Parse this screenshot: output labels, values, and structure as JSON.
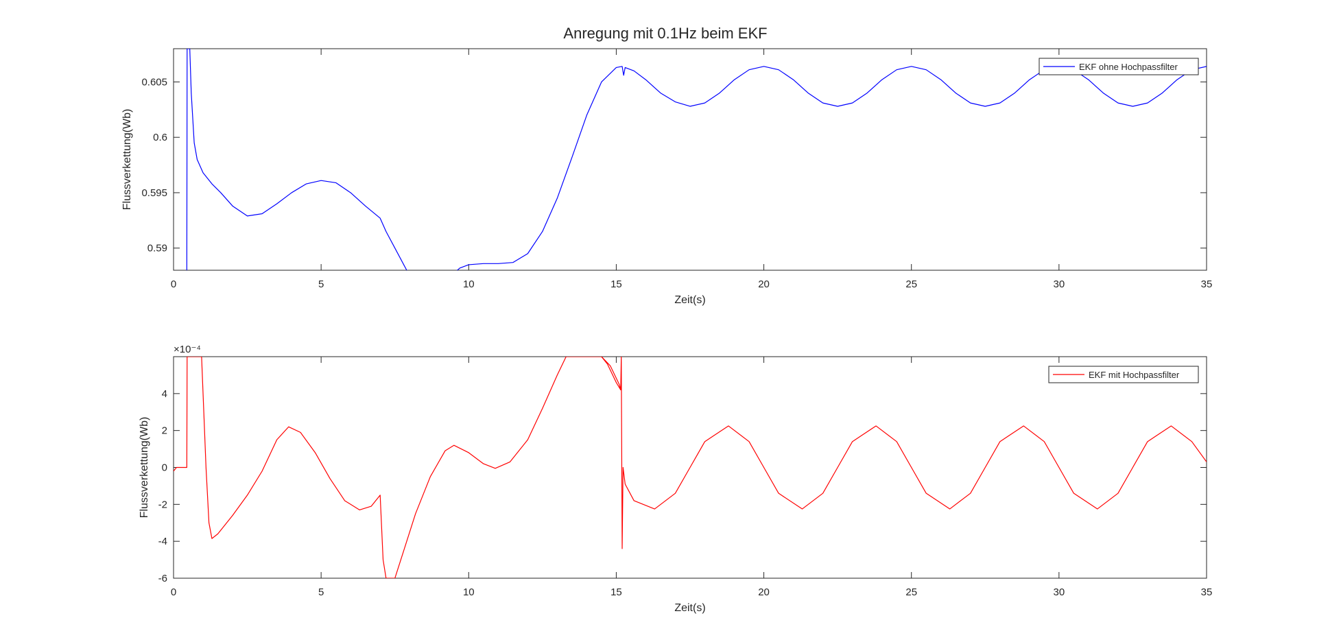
{
  "figure": {
    "title": "Anregung mit 0.1Hz beim EKF"
  },
  "chart_data": [
    {
      "type": "line",
      "xlabel": "Zeit(s)",
      "ylabel": "Flussverkettung(Wb)",
      "xlim": [
        0,
        35
      ],
      "ylim": [
        0.588,
        0.608
      ],
      "xticks": [
        0,
        5,
        10,
        15,
        20,
        25,
        30,
        35
      ],
      "xtick_labels": [
        "0",
        "5",
        "10",
        "15",
        "20",
        "25",
        "30",
        "35"
      ],
      "yticks": [
        0.59,
        0.595,
        0.6,
        0.605
      ],
      "ytick_labels": [
        "0.59",
        "0.595",
        "0.6",
        "0.605"
      ],
      "exponent_label": "",
      "legend_position": "top-right",
      "grid": false,
      "series": [
        {
          "name": "EKF ohne Hochpassfilter",
          "color": "#0000ff",
          "points": [
            [
              0.45,
              0.588
            ],
            [
              0.46,
              0.608
            ],
            [
              0.55,
              0.608
            ],
            [
              0.6,
              0.604
            ],
            [
              0.7,
              0.5995
            ],
            [
              0.8,
              0.598
            ],
            [
              1.0,
              0.5968
            ],
            [
              1.3,
              0.5958
            ],
            [
              1.6,
              0.595
            ],
            [
              2.0,
              0.5938
            ],
            [
              2.5,
              0.5929
            ],
            [
              3.0,
              0.5931
            ],
            [
              3.5,
              0.594
            ],
            [
              4.0,
              0.595
            ],
            [
              4.5,
              0.5958
            ],
            [
              5.0,
              0.5961
            ],
            [
              5.5,
              0.5959
            ],
            [
              6.0,
              0.595
            ],
            [
              6.5,
              0.5938
            ],
            [
              7.0,
              0.5927
            ],
            [
              7.2,
              0.5915
            ],
            [
              7.5,
              0.59
            ],
            [
              7.8,
              0.5885
            ],
            [
              8.0,
              0.5875
            ],
            [
              9.4,
              0.5875
            ],
            [
              9.7,
              0.5882
            ],
            [
              10.0,
              0.5885
            ],
            [
              10.5,
              0.5886
            ],
            [
              11.0,
              0.5886
            ],
            [
              11.5,
              0.5887
            ],
            [
              12.0,
              0.5895
            ],
            [
              12.5,
              0.5915
            ],
            [
              13.0,
              0.5945
            ],
            [
              13.5,
              0.5982
            ],
            [
              14.0,
              0.602
            ],
            [
              14.5,
              0.605
            ],
            [
              15.0,
              0.6063
            ],
            [
              15.2,
              0.6064
            ],
            [
              15.25,
              0.6056
            ],
            [
              15.3,
              0.6063
            ],
            [
              15.6,
              0.606
            ],
            [
              16.0,
              0.6052
            ],
            [
              16.5,
              0.604
            ],
            [
              17.0,
              0.6032
            ],
            [
              17.5,
              0.6028
            ],
            [
              18.0,
              0.6031
            ],
            [
              18.5,
              0.604
            ],
            [
              19.0,
              0.6052
            ],
            [
              19.5,
              0.6061
            ],
            [
              20.0,
              0.6064
            ],
            [
              20.5,
              0.6061
            ],
            [
              21.0,
              0.6052
            ],
            [
              21.5,
              0.604
            ],
            [
              22.0,
              0.6031
            ],
            [
              22.5,
              0.6028
            ],
            [
              23.0,
              0.6031
            ],
            [
              23.5,
              0.604
            ],
            [
              24.0,
              0.6052
            ],
            [
              24.5,
              0.6061
            ],
            [
              25.0,
              0.6064
            ],
            [
              25.5,
              0.6061
            ],
            [
              26.0,
              0.6052
            ],
            [
              26.5,
              0.604
            ],
            [
              27.0,
              0.6031
            ],
            [
              27.5,
              0.6028
            ],
            [
              28.0,
              0.6031
            ],
            [
              28.5,
              0.604
            ],
            [
              29.0,
              0.6052
            ],
            [
              29.5,
              0.6061
            ],
            [
              30.0,
              0.6064
            ],
            [
              30.5,
              0.6061
            ],
            [
              31.0,
              0.6052
            ],
            [
              31.5,
              0.604
            ],
            [
              32.0,
              0.6031
            ],
            [
              32.5,
              0.6028
            ],
            [
              33.0,
              0.6031
            ],
            [
              33.5,
              0.604
            ],
            [
              34.0,
              0.6052
            ],
            [
              34.5,
              0.6061
            ],
            [
              35.0,
              0.6064
            ]
          ]
        }
      ]
    },
    {
      "type": "line",
      "xlabel": "Zeit(s)",
      "ylabel": "Flussverkettung(Wb)",
      "xlim": [
        0,
        35
      ],
      "ylim": [
        -6,
        6
      ],
      "xticks": [
        0,
        5,
        10,
        15,
        20,
        25,
        30,
        35
      ],
      "xtick_labels": [
        "0",
        "5",
        "10",
        "15",
        "20",
        "25",
        "30",
        "35"
      ],
      "yticks": [
        -6,
        -4,
        -2,
        0,
        2,
        4
      ],
      "ytick_labels": [
        "-6",
        "-4",
        "-2",
        "0",
        "2",
        "4"
      ],
      "exponent_label": "×10⁻⁴",
      "legend_position": "top-right",
      "grid": false,
      "series": [
        {
          "name": "EKF mit Hochpassfilter",
          "color": "#ff0000",
          "points": [
            [
              0.0,
              -0.2
            ],
            [
              0.1,
              0.0
            ],
            [
              0.45,
              0.0
            ],
            [
              0.46,
              6.0
            ],
            [
              0.95,
              6.0
            ],
            [
              1.0,
              4.0
            ],
            [
              1.1,
              0.0
            ],
            [
              1.2,
              -3.0
            ],
            [
              1.3,
              -3.85
            ],
            [
              1.5,
              -3.6
            ],
            [
              2.0,
              -2.6
            ],
            [
              2.5,
              -1.5
            ],
            [
              3.0,
              -0.2
            ],
            [
              3.5,
              1.5
            ],
            [
              3.9,
              2.2
            ],
            [
              4.3,
              1.9
            ],
            [
              4.8,
              0.8
            ],
            [
              5.3,
              -0.6
            ],
            [
              5.8,
              -1.8
            ],
            [
              6.3,
              -2.3
            ],
            [
              6.7,
              -2.1
            ],
            [
              7.0,
              -1.5
            ],
            [
              7.1,
              -5.0
            ],
            [
              7.2,
              -6.0
            ],
            [
              7.5,
              -6.0
            ],
            [
              7.8,
              -4.5
            ],
            [
              8.2,
              -2.5
            ],
            [
              8.7,
              -0.5
            ],
            [
              9.2,
              0.9
            ],
            [
              9.5,
              1.2
            ],
            [
              10.0,
              0.8
            ],
            [
              10.5,
              0.2
            ],
            [
              10.9,
              -0.05
            ],
            [
              11.4,
              0.3
            ],
            [
              12.0,
              1.5
            ],
            [
              12.5,
              3.2
            ],
            [
              13.0,
              5.0
            ],
            [
              13.3,
              6.0
            ],
            [
              14.5,
              6.0
            ],
            [
              14.8,
              5.5
            ],
            [
              15.1,
              4.5
            ],
            [
              15.15,
              4.2
            ],
            [
              15.17,
              6.0
            ],
            [
              15.2,
              -4.4
            ],
            [
              15.23,
              0.0
            ],
            [
              15.3,
              -0.9
            ],
            [
              15.6,
              -1.8
            ],
            [
              16.3,
              -2.25
            ],
            [
              17.0,
              -1.4
            ],
            [
              17.5,
              0.0
            ],
            [
              18.0,
              1.4
            ],
            [
              18.8,
              2.25
            ],
            [
              19.5,
              1.4
            ],
            [
              20.0,
              0.0
            ],
            [
              20.5,
              -1.4
            ],
            [
              21.3,
              -2.25
            ],
            [
              22.0,
              -1.4
            ],
            [
              22.5,
              0.0
            ],
            [
              23.0,
              1.4
            ],
            [
              23.8,
              2.25
            ],
            [
              24.5,
              1.4
            ],
            [
              25.0,
              0.0
            ],
            [
              25.5,
              -1.4
            ],
            [
              26.3,
              -2.25
            ],
            [
              27.0,
              -1.4
            ],
            [
              27.5,
              0.0
            ],
            [
              28.0,
              1.4
            ],
            [
              28.8,
              2.25
            ],
            [
              29.5,
              1.4
            ],
            [
              30.0,
              0.0
            ],
            [
              30.5,
              -1.4
            ],
            [
              31.3,
              -2.25
            ],
            [
              32.0,
              -1.4
            ],
            [
              32.5,
              0.0
            ],
            [
              33.0,
              1.4
            ],
            [
              33.8,
              2.25
            ],
            [
              34.5,
              1.4
            ],
            [
              35.0,
              0.3
            ]
          ]
        },
        {
          "name": "",
          "color": "#ff0000",
          "points": [
            [
              14.5,
              6.0
            ],
            [
              14.7,
              5.6
            ],
            [
              15.0,
              4.6
            ],
            [
              15.15,
              4.2
            ]
          ]
        }
      ]
    }
  ]
}
